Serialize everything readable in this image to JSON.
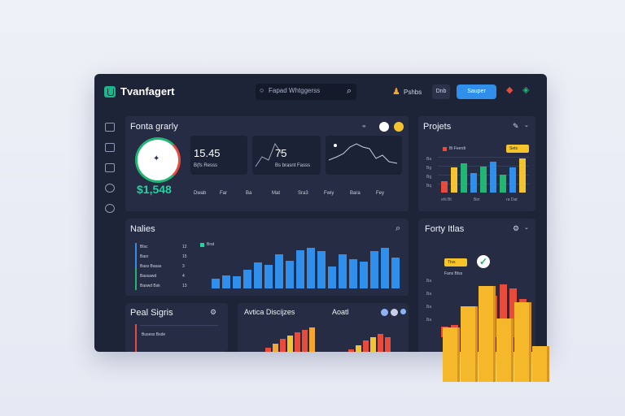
{
  "app": {
    "title": "Tvanfagert"
  },
  "search": {
    "placeholder": "Fapad Whtggerss"
  },
  "toolbar": {
    "link": "Pshbs",
    "cancel_label": "Dnb",
    "save_label": "Sauper"
  },
  "overview": {
    "title": "Fonta grarly",
    "total": "$1,548",
    "stat1": {
      "value": "15.45",
      "caption": "B(fs Resss"
    },
    "stat2": {
      "value": "75",
      "caption": "Bs brasnt Fasss"
    },
    "months": [
      "Dwab",
      "Far",
      "Ba",
      "Mat",
      "Sra3",
      "Fwiy",
      "Bara",
      "Fey"
    ]
  },
  "projects": {
    "title": "Projets",
    "legend": "Bi Feerdi",
    "badge": "Sets",
    "xlabels": [
      "ehl Bt",
      "Ber",
      "ra Dat"
    ],
    "yticks": [
      "Ba",
      "Bg",
      "Bg",
      "Bq"
    ],
    "chart_data": {
      "type": "bar",
      "values": [
        13,
        28,
        33,
        22,
        29,
        35,
        20,
        28,
        38
      ],
      "colors": [
        "#e64b3c",
        "#f4c430",
        "#22b573",
        "#2f8fea",
        "#22b573",
        "#2f8fea",
        "#22b573",
        "#2f8fea",
        "#f4c430"
      ]
    }
  },
  "nalies": {
    "title": "Nalies",
    "items": [
      "Blsc",
      "Basr",
      "Bass Basas",
      "Bassawd",
      "Baswd Bsk"
    ],
    "values": [
      "12",
      "15",
      "3",
      "4",
      "13"
    ],
    "legend": "Brat",
    "chart_data": {
      "type": "bar",
      "values": [
        12,
        15,
        14,
        22,
        31,
        28,
        40,
        33,
        45,
        48,
        44,
        26,
        40,
        35,
        32,
        44,
        48,
        37
      ]
    }
  },
  "forty": {
    "title": "Forty Itlas",
    "badge": "Ttvs",
    "sub": "Fans Btss",
    "yticks": [
      "Ba",
      "Ba",
      "Ba",
      "Ba"
    ],
    "chart_data": {
      "type": "bar",
      "values": [
        14,
        16,
        18,
        28,
        45,
        55,
        70,
        64,
        50
      ]
    },
    "overlay_bars": [
      40,
      55,
      70,
      46,
      58,
      26
    ]
  },
  "pearl": {
    "title": "Peal Sigris",
    "item": "Busess Bsde"
  },
  "analytics": {
    "title": "Avtica Discijzes",
    "chart_data": {
      "type": "bar",
      "values": [
        5,
        10,
        16,
        20,
        24,
        27,
        30
      ]
    }
  },
  "month": {
    "title": "Aoatl",
    "chart_data": {
      "type": "bar",
      "values": [
        3,
        8,
        14,
        18,
        22,
        18
      ]
    }
  }
}
